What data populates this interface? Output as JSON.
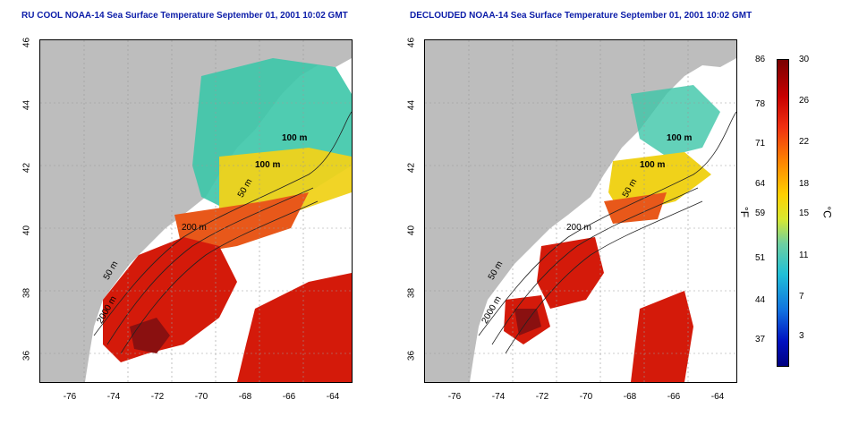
{
  "titles": {
    "left": "RU COOL NOAA-14 Sea Surface Temperature September 01, 2001 10:02 GMT",
    "right": "DECLOUDED NOAA-14 Sea Surface Temperature September 01, 2001 10:02 GMT"
  },
  "latitude_labels": [
    "46",
    "44",
    "42",
    "40",
    "38",
    "36"
  ],
  "longitude_labels": [
    "-76",
    "-74",
    "-72",
    "-70",
    "-68",
    "-66",
    "-64"
  ],
  "contour_labels": {
    "m100_top": "100 m",
    "m100_mid": "100 m",
    "m50_upper": "50 m",
    "m200": "200 m",
    "m50_lower": "50 m",
    "m2000": "2000 m"
  },
  "colorbar": {
    "fahrenheit_labels": [
      "86",
      "78",
      "71",
      "64",
      "59",
      "51",
      "44",
      "37"
    ],
    "celsius_labels": [
      "30",
      "26",
      "22",
      "18",
      "15",
      "11",
      "7",
      "3"
    ],
    "f_unit": "°F",
    "c_unit": "°C"
  },
  "colors": {
    "land": "#bdbdbd",
    "cloud": "#ffffff",
    "title": "#0b1ca8",
    "hot": "#d41a0a",
    "warm": "#f0d21a",
    "cool": "#35d0c0"
  }
}
